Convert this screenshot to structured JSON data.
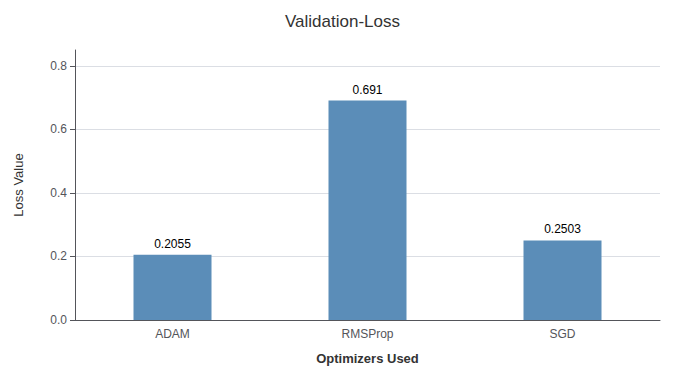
{
  "chart_data": {
    "type": "bar",
    "title": "Validation-Loss",
    "xlabel": "Optimizers Used",
    "ylabel": "Loss Value",
    "categories": [
      "ADAM",
      "RMSProp",
      "SGD"
    ],
    "values": [
      0.2055,
      0.691,
      0.2503
    ],
    "color": "#5B8DB8",
    "ylim": [
      0,
      0.85
    ],
    "yticks": [
      {
        "value": 0,
        "label": "0.0"
      },
      0.2,
      0.4,
      0.6,
      0.8
    ],
    "grid": true,
    "data_labels": true
  }
}
